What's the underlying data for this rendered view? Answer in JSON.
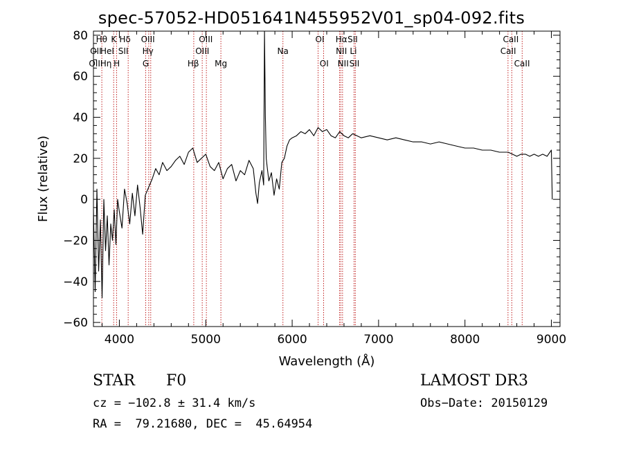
{
  "chart_data": {
    "type": "line",
    "title": "spec-57052-HD051641N455952V01_sp04-092.fits",
    "xlabel": "Wavelength (Å)",
    "ylabel": "Flux (relative)",
    "xlim": [
      3700,
      9100
    ],
    "ylim": [
      -62,
      82
    ],
    "xticks": [
      4000,
      5000,
      6000,
      7000,
      8000,
      9000
    ],
    "yticks": [
      -60,
      -40,
      -20,
      0,
      20,
      40,
      60,
      80
    ],
    "series": [
      {
        "name": "spectrum",
        "x": [
          3700,
          3720,
          3740,
          3760,
          3780,
          3800,
          3820,
          3840,
          3860,
          3880,
          3900,
          3920,
          3940,
          3960,
          3980,
          4000,
          4030,
          4060,
          4090,
          4120,
          4150,
          4180,
          4210,
          4240,
          4270,
          4300,
          4340,
          4380,
          4420,
          4460,
          4500,
          4550,
          4600,
          4650,
          4700,
          4750,
          4800,
          4850,
          4900,
          4950,
          5000,
          5050,
          5100,
          5150,
          5200,
          5250,
          5300,
          5350,
          5400,
          5450,
          5500,
          5550,
          5580,
          5600,
          5620,
          5650,
          5670,
          5680,
          5690,
          5700,
          5710,
          5730,
          5760,
          5790,
          5820,
          5850,
          5880,
          5910,
          5940,
          5970,
          6000,
          6050,
          6100,
          6150,
          6200,
          6250,
          6300,
          6350,
          6400,
          6450,
          6500,
          6550,
          6600,
          6650,
          6700,
          6750,
          6800,
          6900,
          7000,
          7100,
          7200,
          7300,
          7400,
          7500,
          7600,
          7700,
          7800,
          7900,
          8000,
          8100,
          8200,
          8300,
          8400,
          8500,
          8550,
          8600,
          8650,
          8700,
          8750,
          8800,
          8850,
          8900,
          8950,
          9000,
          9010
        ],
        "y": [
          -5,
          -45,
          5,
          -35,
          -10,
          -48,
          0,
          -25,
          -8,
          -32,
          -12,
          -20,
          -5,
          -22,
          0,
          -6,
          -14,
          5,
          -2,
          -12,
          3,
          -8,
          7,
          -4,
          -17,
          2,
          6,
          10,
          15,
          12,
          18,
          14,
          16,
          19,
          21,
          17,
          23,
          25,
          18,
          20,
          22,
          16,
          14,
          18,
          10,
          15,
          17,
          9,
          14,
          12,
          19,
          15,
          3,
          -2,
          8,
          14,
          7,
          82,
          40,
          20,
          16,
          9,
          13,
          2,
          10,
          5,
          18,
          20,
          26,
          29,
          30,
          31,
          33,
          32,
          34,
          31,
          35,
          33,
          34,
          31,
          30,
          33,
          31,
          30,
          32,
          31,
          30,
          31,
          30,
          29,
          30,
          29,
          28,
          28,
          27,
          28,
          27,
          26,
          25,
          25,
          24,
          24,
          23,
          23,
          22,
          21,
          22,
          22,
          21,
          22,
          21,
          22,
          21,
          24,
          0
        ]
      }
    ],
    "lines": [
      {
        "name": "Hθ",
        "x": 3797
      },
      {
        "name": "K",
        "x": 3934
      },
      {
        "name": "H",
        "x": 3968
      },
      {
        "name": "Hδ",
        "x": 4102
      },
      {
        "name": "OIII",
        "x": 4363
      },
      {
        "name": "Hγ",
        "x": 4340
      },
      {
        "name": "G",
        "x": 4305
      },
      {
        "name": "Hβ",
        "x": 4861
      },
      {
        "name": "OIII",
        "x": 5007
      },
      {
        "name": "OIII",
        "x": 4959
      },
      {
        "name": "Mg",
        "x": 5175
      },
      {
        "name": "Na",
        "x": 5893
      },
      {
        "name": "OI",
        "x": 6300
      },
      {
        "name": "OI",
        "x": 6364
      },
      {
        "name": "Hα",
        "x": 6563
      },
      {
        "name": "NII",
        "x": 6548
      },
      {
        "name": "NII",
        "x": 6583
      },
      {
        "name": "SII",
        "x": 6716
      },
      {
        "name": "SII",
        "x": 6731
      },
      {
        "name": "CaII",
        "x": 8498
      },
      {
        "name": "CaII",
        "x": 8542
      },
      {
        "name": "CaII",
        "x": 8662
      }
    ],
    "labels": [
      {
        "text": "Hθ",
        "wl": 3795,
        "row": 1
      },
      {
        "text": "K",
        "wl": 3935,
        "row": 1
      },
      {
        "text": "Hδ",
        "wl": 4065,
        "row": 1
      },
      {
        "text": "OIII",
        "wl": 4330,
        "row": 1
      },
      {
        "text": "OIII",
        "wl": 5000,
        "row": 1
      },
      {
        "text": "OI",
        "wl": 6320,
        "row": 1
      },
      {
        "text": "Hα",
        "wl": 6570,
        "row": 1
      },
      {
        "text": "SII",
        "wl": 6700,
        "row": 1
      },
      {
        "text": "CaII",
        "wl": 8530,
        "row": 1
      },
      {
        "text": "OII",
        "wl": 3727,
        "row": 2
      },
      {
        "text": "HeI",
        "wl": 3860,
        "row": 2
      },
      {
        "text": "SII",
        "wl": 4045,
        "row": 2
      },
      {
        "text": "Hγ",
        "wl": 4330,
        "row": 2
      },
      {
        "text": "OIII",
        "wl": 4960,
        "row": 2
      },
      {
        "text": "Na",
        "wl": 5893,
        "row": 2
      },
      {
        "text": "NII",
        "wl": 6570,
        "row": 2
      },
      {
        "text": "Li",
        "wl": 6708,
        "row": 2
      },
      {
        "text": "CaII",
        "wl": 8500,
        "row": 2
      },
      {
        "text": "OIII",
        "wl": 3727,
        "row": 3
      },
      {
        "text": "Hη",
        "wl": 3845,
        "row": 3
      },
      {
        "text": "H",
        "wl": 3970,
        "row": 3
      },
      {
        "text": "G",
        "wl": 4305,
        "row": 3
      },
      {
        "text": "Hβ",
        "wl": 4855,
        "row": 3
      },
      {
        "text": "Mg",
        "wl": 5175,
        "row": 3
      },
      {
        "text": "OI",
        "wl": 6370,
        "row": 3
      },
      {
        "text": "NII",
        "wl": 6590,
        "row": 3
      },
      {
        "text": "SII",
        "wl": 6720,
        "row": 3
      },
      {
        "text": "CaII",
        "wl": 8660,
        "row": 3
      }
    ]
  },
  "info": {
    "object_class": "STAR",
    "subclass": "F0",
    "survey": "LAMOST DR3",
    "cz": "cz = −102.8 ± 31.4 km/s",
    "obs_date": "Obs−Date: 20150129",
    "coords": "RA =  79.21680, DEC =  45.64954"
  }
}
